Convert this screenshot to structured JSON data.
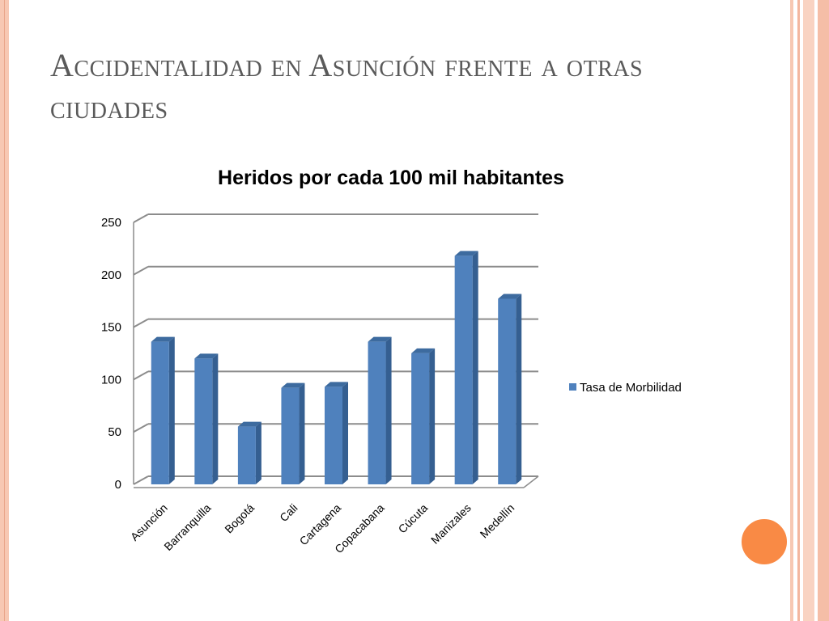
{
  "slide": {
    "title": "Accidentalidad en Asunción frente a otras ciudades"
  },
  "colors": {
    "bar_front": "#4f81bd",
    "bar_side": "#355f91",
    "bar_top": "#3d6b9f",
    "accent_orange": "#f98a45",
    "stripe": "#f7c8b3",
    "title_text": "#5a5a5a"
  },
  "chart_data": {
    "type": "bar",
    "title": "Heridos por cada 100 mil habitantes",
    "categories": [
      "Asunción",
      "Barranquilla",
      "Bogotá",
      "Cali",
      "Cartagena",
      "Copacabana",
      "Cúcuta",
      "Manizales",
      "Medellín"
    ],
    "series": [
      {
        "name": "Tasa de Morbilidad",
        "values": [
          133,
          117,
          52,
          89,
          90,
          133,
          122,
          215,
          174
        ]
      }
    ],
    "ylim": [
      0,
      250
    ],
    "yticks": [
      0,
      50,
      100,
      150,
      200,
      250
    ],
    "grid": true,
    "legend": "right",
    "style": "3d"
  }
}
